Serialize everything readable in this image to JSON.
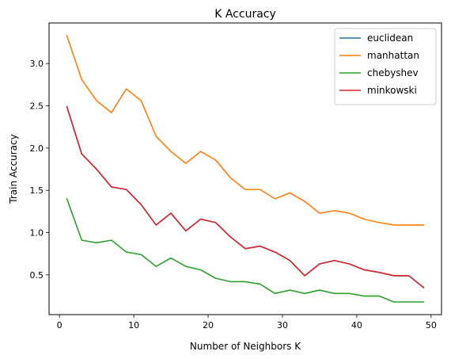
{
  "chart_data": {
    "type": "line",
    "title": "K Accuracy",
    "xlabel": "Number of Neighbors K",
    "ylabel": "Train Accuracy",
    "xlim": [
      -1.4,
      51.4
    ],
    "ylim": [
      0.03,
      3.48
    ],
    "xticks": [
      0,
      10,
      20,
      30,
      40,
      50
    ],
    "xtick_labels": [
      "0",
      "10",
      "20",
      "30",
      "40",
      "50"
    ],
    "yticks": [
      0.5,
      1.0,
      1.5,
      2.0,
      2.5,
      3.0
    ],
    "ytick_labels": [
      "0.5",
      "1.0",
      "1.5",
      "2.0",
      "2.5",
      "3.0"
    ],
    "grid": false,
    "legend_position": "top-right",
    "x": [
      1,
      3,
      5,
      7,
      9,
      11,
      13,
      15,
      17,
      19,
      21,
      23,
      25,
      27,
      29,
      31,
      33,
      35,
      37,
      39,
      41,
      43,
      45,
      47,
      49
    ],
    "series": [
      {
        "name": "euclidean",
        "color": "#1f77b4",
        "values": [
          2.49,
          1.93,
          1.75,
          1.54,
          1.51,
          1.33,
          1.09,
          1.23,
          1.02,
          1.16,
          1.12,
          0.95,
          0.81,
          0.84,
          0.77,
          0.67,
          0.49,
          0.63,
          0.67,
          0.63,
          0.56,
          0.53,
          0.49,
          0.49,
          0.35
        ]
      },
      {
        "name": "manhattan",
        "color": "#ff7f0e",
        "values": [
          3.33,
          2.81,
          2.56,
          2.42,
          2.7,
          2.56,
          2.14,
          1.96,
          1.82,
          1.96,
          1.86,
          1.65,
          1.51,
          1.51,
          1.4,
          1.47,
          1.37,
          1.23,
          1.26,
          1.23,
          1.16,
          1.12,
          1.09,
          1.09,
          1.09
        ]
      },
      {
        "name": "chebyshev",
        "color": "#2ca02c",
        "values": [
          1.4,
          0.91,
          0.88,
          0.91,
          0.77,
          0.74,
          0.6,
          0.7,
          0.6,
          0.56,
          0.46,
          0.42,
          0.42,
          0.39,
          0.28,
          0.32,
          0.28,
          0.32,
          0.28,
          0.28,
          0.25,
          0.25,
          0.18,
          0.18,
          0.18
        ]
      },
      {
        "name": "minkowski",
        "color": "#d62728",
        "values": [
          2.49,
          1.93,
          1.75,
          1.54,
          1.51,
          1.33,
          1.09,
          1.23,
          1.02,
          1.16,
          1.12,
          0.95,
          0.81,
          0.84,
          0.77,
          0.67,
          0.49,
          0.63,
          0.67,
          0.63,
          0.56,
          0.53,
          0.49,
          0.49,
          0.35
        ]
      }
    ]
  }
}
